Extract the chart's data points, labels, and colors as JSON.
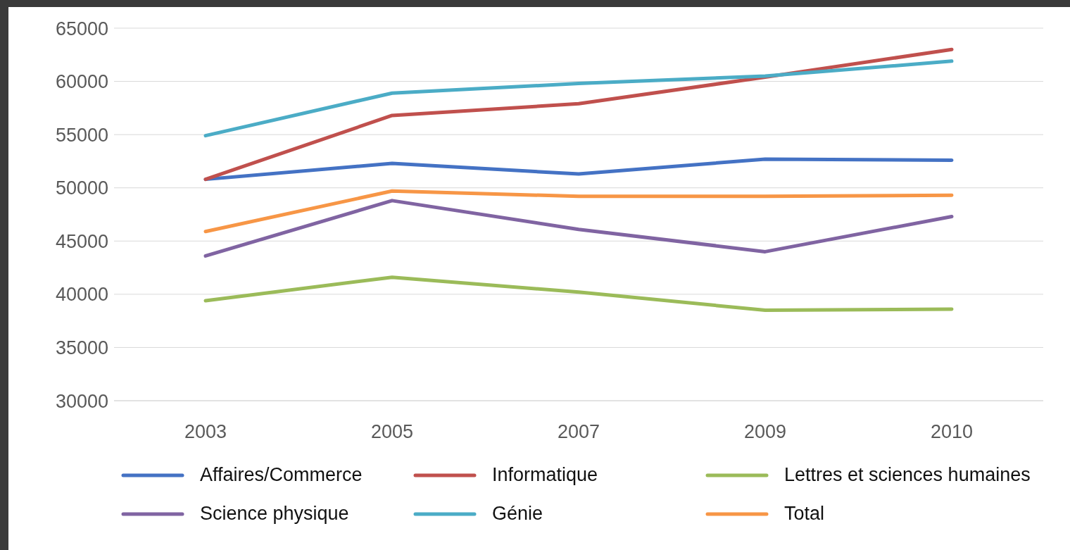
{
  "chart_data": {
    "type": "line",
    "categories": [
      "2003",
      "2005",
      "2007",
      "2009",
      "2010"
    ],
    "series": [
      {
        "name": "Affaires/Commerce",
        "color": "#4472c4",
        "values": [
          50800,
          52300,
          51300,
          52700,
          52600
        ]
      },
      {
        "name": "Informatique",
        "color": "#c0504d",
        "values": [
          50800,
          56800,
          57900,
          60400,
          63000
        ]
      },
      {
        "name": "Lettres et sciences humaines",
        "color": "#9bbb59",
        "values": [
          39400,
          41600,
          40200,
          38500,
          38600
        ]
      },
      {
        "name": "Science physique",
        "color": "#8064a2",
        "values": [
          43600,
          48800,
          46100,
          44000,
          47300
        ]
      },
      {
        "name": "Génie",
        "color": "#4bacc6",
        "values": [
          54900,
          58900,
          59800,
          60500,
          61900
        ]
      },
      {
        "name": "Total",
        "color": "#f79646",
        "values": [
          45900,
          49700,
          49200,
          49200,
          49300
        ]
      }
    ],
    "ylim": [
      30000,
      65000
    ],
    "yticks": [
      30000,
      35000,
      40000,
      45000,
      50000,
      55000,
      60000,
      65000
    ],
    "grid": "y",
    "legend": "bottom",
    "marker": "none",
    "line_style": "solid"
  }
}
